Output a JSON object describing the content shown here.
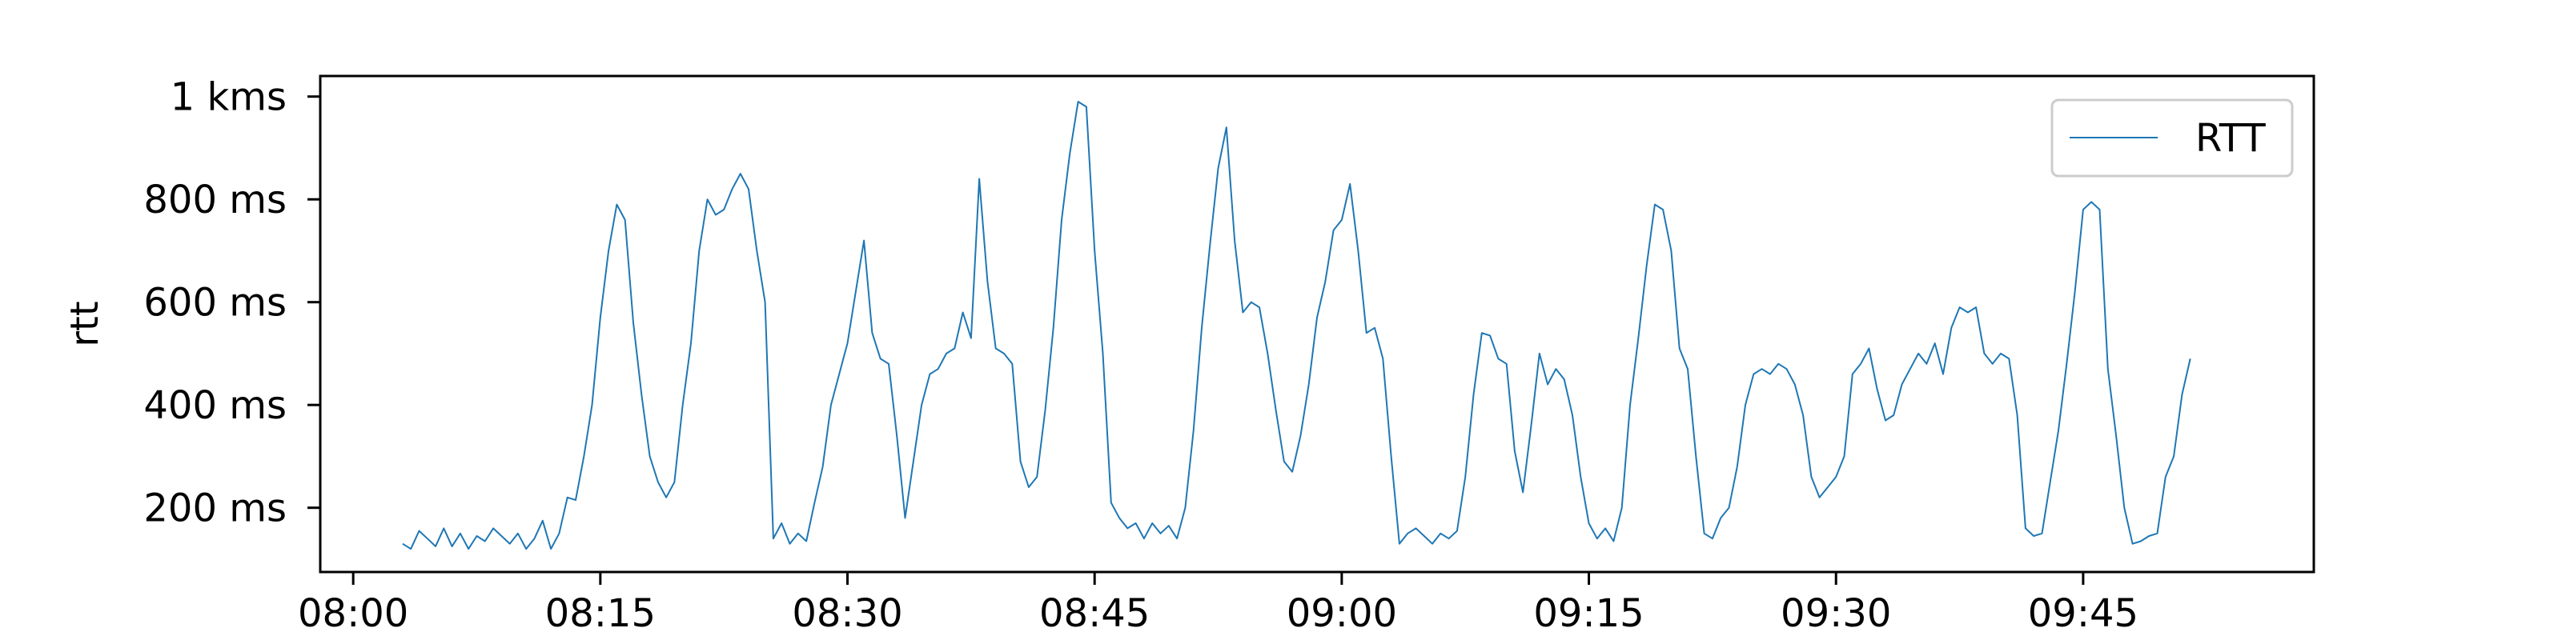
{
  "chart_data": {
    "type": "line",
    "title": "",
    "xlabel": "",
    "ylabel": "rtt",
    "grid": false,
    "legend_position": "top-right",
    "series_color": "#1f77b4",
    "xlim": [
      "07:58",
      "09:59"
    ],
    "ylim": [
      75,
      1040
    ],
    "x_ticks": [
      "08:00",
      "08:15",
      "08:30",
      "08:45",
      "09:00",
      "09:15",
      "09:30",
      "09:45"
    ],
    "y_ticks": [
      {
        "value": 200,
        "label": "200 ms"
      },
      {
        "value": 400,
        "label": "400 ms"
      },
      {
        "value": 600,
        "label": "600 ms"
      },
      {
        "value": 800,
        "label": "800 ms"
      },
      {
        "value": 1000,
        "label": "1 kms"
      }
    ],
    "series": [
      {
        "name": "RTT",
        "points": [
          [
            "08:03",
            130
          ],
          [
            "08:03:30",
            120
          ],
          [
            "08:04",
            155
          ],
          [
            "08:04:30",
            140
          ],
          [
            "08:05",
            125
          ],
          [
            "08:05:30",
            160
          ],
          [
            "08:06",
            125
          ],
          [
            "08:06:30",
            150
          ],
          [
            "08:07",
            120
          ],
          [
            "08:07:30",
            145
          ],
          [
            "08:08",
            135
          ],
          [
            "08:08:30",
            160
          ],
          [
            "08:09",
            145
          ],
          [
            "08:09:30",
            130
          ],
          [
            "08:10",
            150
          ],
          [
            "08:10:30",
            120
          ],
          [
            "08:11",
            140
          ],
          [
            "08:11:30",
            175
          ],
          [
            "08:12",
            120
          ],
          [
            "08:12:30",
            150
          ],
          [
            "08:13",
            220
          ],
          [
            "08:13:30",
            215
          ],
          [
            "08:14",
            300
          ],
          [
            "08:14:30",
            400
          ],
          [
            "08:15",
            570
          ],
          [
            "08:15:30",
            700
          ],
          [
            "08:16",
            790
          ],
          [
            "08:16:30",
            760
          ],
          [
            "08:17",
            560
          ],
          [
            "08:17:30",
            420
          ],
          [
            "08:18",
            300
          ],
          [
            "08:18:30",
            250
          ],
          [
            "08:19",
            220
          ],
          [
            "08:19:30",
            250
          ],
          [
            "08:20",
            400
          ],
          [
            "08:20:30",
            520
          ],
          [
            "08:21",
            700
          ],
          [
            "08:21:30",
            800
          ],
          [
            "08:22",
            770
          ],
          [
            "08:22:30",
            780
          ],
          [
            "08:23",
            820
          ],
          [
            "08:23:30",
            850
          ],
          [
            "08:24",
            820
          ],
          [
            "08:24:30",
            700
          ],
          [
            "08:25",
            600
          ],
          [
            "08:25:30",
            140
          ],
          [
            "08:26",
            170
          ],
          [
            "08:26:30",
            130
          ],
          [
            "08:27",
            150
          ],
          [
            "08:27:30",
            135
          ],
          [
            "08:28",
            210
          ],
          [
            "08:28:30",
            280
          ],
          [
            "08:29",
            400
          ],
          [
            "08:29:30",
            460
          ],
          [
            "08:30",
            520
          ],
          [
            "08:30:30",
            620
          ],
          [
            "08:31",
            720
          ],
          [
            "08:31:30",
            540
          ],
          [
            "08:32",
            490
          ],
          [
            "08:32:30",
            480
          ],
          [
            "08:33",
            340
          ],
          [
            "08:33:30",
            180
          ],
          [
            "08:34",
            290
          ],
          [
            "08:34:30",
            400
          ],
          [
            "08:35",
            460
          ],
          [
            "08:35:30",
            470
          ],
          [
            "08:36",
            500
          ],
          [
            "08:36:30",
            510
          ],
          [
            "08:37",
            580
          ],
          [
            "08:37:30",
            530
          ],
          [
            "08:38",
            840
          ],
          [
            "08:38:30",
            640
          ],
          [
            "08:39",
            510
          ],
          [
            "08:39:30",
            500
          ],
          [
            "08:40",
            480
          ],
          [
            "08:40:30",
            290
          ],
          [
            "08:41",
            240
          ],
          [
            "08:41:30",
            260
          ],
          [
            "08:42",
            390
          ],
          [
            "08:42:30",
            550
          ],
          [
            "08:43",
            760
          ],
          [
            "08:43:30",
            890
          ],
          [
            "08:44",
            990
          ],
          [
            "08:44:30",
            980
          ],
          [
            "08:45",
            700
          ],
          [
            "08:45:30",
            500
          ],
          [
            "08:46",
            210
          ],
          [
            "08:46:30",
            180
          ],
          [
            "08:47",
            160
          ],
          [
            "08:47:30",
            170
          ],
          [
            "08:48",
            140
          ],
          [
            "08:48:30",
            170
          ],
          [
            "08:49",
            150
          ],
          [
            "08:49:30",
            165
          ],
          [
            "08:50",
            140
          ],
          [
            "08:50:30",
            200
          ],
          [
            "08:51",
            350
          ],
          [
            "08:51:30",
            550
          ],
          [
            "08:52",
            710
          ],
          [
            "08:52:30",
            860
          ],
          [
            "08:53",
            940
          ],
          [
            "08:53:30",
            720
          ],
          [
            "08:54",
            580
          ],
          [
            "08:54:30",
            600
          ],
          [
            "08:55",
            590
          ],
          [
            "08:55:30",
            500
          ],
          [
            "08:56",
            390
          ],
          [
            "08:56:30",
            290
          ],
          [
            "08:57",
            270
          ],
          [
            "08:57:30",
            340
          ],
          [
            "08:58",
            440
          ],
          [
            "08:58:30",
            570
          ],
          [
            "08:59",
            640
          ],
          [
            "08:59:30",
            740
          ],
          [
            "09:00",
            760
          ],
          [
            "09:00:30",
            830
          ],
          [
            "09:01",
            700
          ],
          [
            "09:01:30",
            540
          ],
          [
            "09:02",
            550
          ],
          [
            "09:02:30",
            490
          ],
          [
            "09:03",
            300
          ],
          [
            "09:03:30",
            130
          ],
          [
            "09:04",
            150
          ],
          [
            "09:04:30",
            160
          ],
          [
            "09:05",
            145
          ],
          [
            "09:05:30",
            130
          ],
          [
            "09:06",
            150
          ],
          [
            "09:06:30",
            140
          ],
          [
            "09:07",
            155
          ],
          [
            "09:07:30",
            260
          ],
          [
            "09:08",
            420
          ],
          [
            "09:08:30",
            540
          ],
          [
            "09:09",
            535
          ],
          [
            "09:09:30",
            490
          ],
          [
            "09:10",
            480
          ],
          [
            "09:10:30",
            310
          ],
          [
            "09:11",
            230
          ],
          [
            "09:11:30",
            360
          ],
          [
            "09:12",
            500
          ],
          [
            "09:12:30",
            440
          ],
          [
            "09:13",
            470
          ],
          [
            "09:13:30",
            450
          ],
          [
            "09:14",
            380
          ],
          [
            "09:14:30",
            260
          ],
          [
            "09:15",
            170
          ],
          [
            "09:15:30",
            140
          ],
          [
            "09:16",
            160
          ],
          [
            "09:16:30",
            135
          ],
          [
            "09:17",
            200
          ],
          [
            "09:17:30",
            400
          ],
          [
            "09:18",
            530
          ],
          [
            "09:18:30",
            670
          ],
          [
            "09:19",
            790
          ],
          [
            "09:19:30",
            780
          ],
          [
            "09:20",
            700
          ],
          [
            "09:20:30",
            510
          ],
          [
            "09:21",
            470
          ],
          [
            "09:21:30",
            300
          ],
          [
            "09:22",
            150
          ],
          [
            "09:22:30",
            140
          ],
          [
            "09:23",
            180
          ],
          [
            "09:23:30",
            200
          ],
          [
            "09:24",
            280
          ],
          [
            "09:24:30",
            400
          ],
          [
            "09:25",
            460
          ],
          [
            "09:25:30",
            470
          ],
          [
            "09:26",
            460
          ],
          [
            "09:26:30",
            480
          ],
          [
            "09:27",
            470
          ],
          [
            "09:27:30",
            440
          ],
          [
            "09:28",
            380
          ],
          [
            "09:28:30",
            260
          ],
          [
            "09:29",
            220
          ],
          [
            "09:29:30",
            240
          ],
          [
            "09:30",
            260
          ],
          [
            "09:30:30",
            300
          ],
          [
            "09:31",
            460
          ],
          [
            "09:31:30",
            480
          ],
          [
            "09:32",
            510
          ],
          [
            "09:32:30",
            430
          ],
          [
            "09:33",
            370
          ],
          [
            "09:33:30",
            380
          ],
          [
            "09:34",
            440
          ],
          [
            "09:34:30",
            470
          ],
          [
            "09:35",
            500
          ],
          [
            "09:35:30",
            480
          ],
          [
            "09:36",
            520
          ],
          [
            "09:36:30",
            460
          ],
          [
            "09:37",
            550
          ],
          [
            "09:37:30",
            590
          ],
          [
            "09:38",
            580
          ],
          [
            "09:38:30",
            590
          ],
          [
            "09:39",
            500
          ],
          [
            "09:39:30",
            480
          ],
          [
            "09:40",
            500
          ],
          [
            "09:40:30",
            490
          ],
          [
            "09:41",
            380
          ],
          [
            "09:41:30",
            160
          ],
          [
            "09:42",
            145
          ],
          [
            "09:42:30",
            150
          ],
          [
            "09:43",
            250
          ],
          [
            "09:43:30",
            350
          ],
          [
            "09:44",
            480
          ],
          [
            "09:44:30",
            620
          ],
          [
            "09:45",
            780
          ],
          [
            "09:45:30",
            795
          ],
          [
            "09:46",
            780
          ],
          [
            "09:46:30",
            470
          ],
          [
            "09:47",
            340
          ],
          [
            "09:47:30",
            200
          ],
          [
            "09:48",
            130
          ],
          [
            "09:48:30",
            135
          ],
          [
            "09:49",
            145
          ],
          [
            "09:49:30",
            150
          ],
          [
            "09:50",
            260
          ],
          [
            "09:50:30",
            300
          ],
          [
            "09:51",
            420
          ],
          [
            "09:51:30",
            490
          ]
        ]
      }
    ]
  }
}
